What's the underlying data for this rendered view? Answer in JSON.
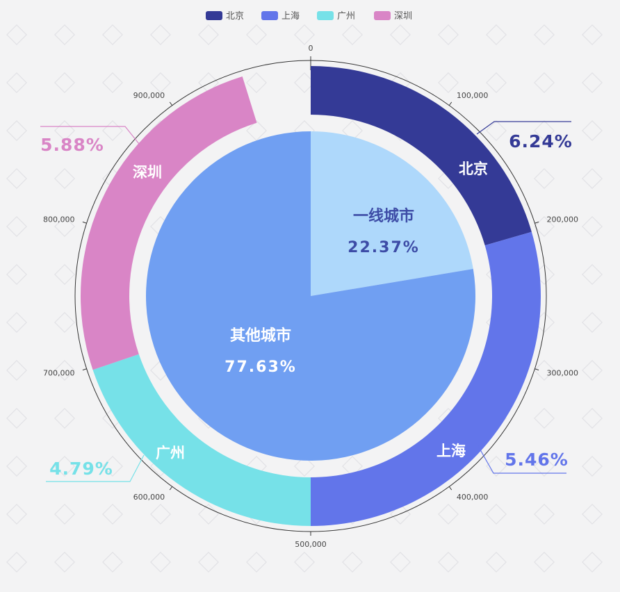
{
  "chart_data": {
    "type": "pie",
    "legend": {
      "position": "top-center",
      "items": [
        {
          "label": "北京",
          "color": "#343a96"
        },
        {
          "label": "上海",
          "color": "#6275ea"
        },
        {
          "label": "广州",
          "color": "#76e1e8"
        },
        {
          "label": "深圳",
          "color": "#d985c6"
        }
      ]
    },
    "outer_ring": {
      "axis_max": 1000000,
      "ticks": [
        "0",
        "100,000",
        "200,000",
        "300,000",
        "400,000",
        "500,000",
        "600,000",
        "700,000",
        "800,000",
        "900,000"
      ],
      "series": [
        {
          "name": "北京",
          "label": "6.24%",
          "start": 0,
          "end": 205000,
          "color": "#343a96"
        },
        {
          "name": "上海",
          "label": "5.46%",
          "start": 205000,
          "end": 500000,
          "color": "#6275ea"
        },
        {
          "name": "广州",
          "label": "4.79%",
          "start": 500000,
          "end": 698000,
          "color": "#76e1e8"
        },
        {
          "name": "深圳",
          "label": "5.88%",
          "start": 698000,
          "end": 952000,
          "color": "#d985c6"
        }
      ]
    },
    "inner_pie": {
      "slices": [
        {
          "name": "一线城市",
          "value": 22.37,
          "label": "22.37%",
          "color": "#aed8fb",
          "text_color": "#3d4ca6"
        },
        {
          "name": "其他城市",
          "value": 77.63,
          "label": "77.63%",
          "color": "#709ff2",
          "text_color": "#ffffff"
        }
      ]
    }
  }
}
